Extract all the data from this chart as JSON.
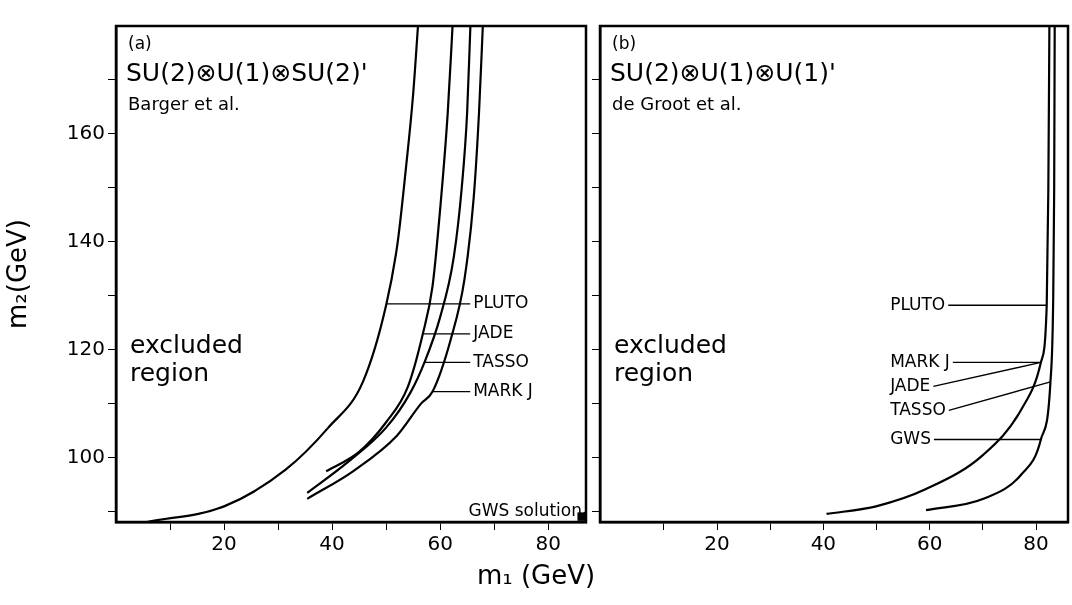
{
  "chart_data": [
    {
      "type": "line",
      "title": "(a)",
      "subtitle": "SU(2)⊗U(1)⊗SU(2)'",
      "xlabel": "m₁ (GeV)",
      "ylabel": "m₂(GeV)",
      "marker": "none",
      "line_style": "solid",
      "grid": false,
      "xlim": [
        0,
        87
      ],
      "ylim": [
        88,
        180
      ],
      "xticks": [
        {
          "value": 10,
          "label": null
        },
        20,
        {
          "value": 30,
          "label": null
        },
        40,
        {
          "value": 50,
          "label": null
        },
        60,
        {
          "value": 70,
          "label": null
        },
        80
      ],
      "yticks": [
        {
          "value": 90,
          "label": null
        },
        100,
        {
          "value": 110,
          "label": null
        },
        120,
        {
          "value": 130,
          "label": null
        },
        140,
        {
          "value": 150,
          "label": null
        },
        160,
        {
          "value": 170,
          "label": null
        }
      ],
      "series": [
        {
          "color": "#000000",
          "x": [
            5.7,
            20,
            31.4,
            39.3,
            45.7,
            50,
            52.1,
            53.6,
            55,
            55.9
          ],
          "values": [
            88,
            90.9,
            97.7,
            105.5,
            114,
            128.2,
            139.6,
            153,
            167.3,
            180
          ]
        },
        {
          "color": "#000000",
          "x": [
            38.9,
            45,
            50,
            54,
            56.8,
            58.6,
            60,
            61.4,
            62.3
          ],
          "values": [
            97.4,
            101,
            106.5,
            113,
            122.9,
            131.8,
            146,
            163.8,
            180
          ]
        },
        {
          "color": "#000000",
          "x": [
            35.4,
            42.9,
            50,
            54.5,
            57.1,
            60,
            62.5,
            64,
            65,
            65.6
          ],
          "values": [
            93.4,
            99.1,
            105.5,
            112,
            117.6,
            126,
            137,
            150,
            164,
            180
          ]
        },
        {
          "color": "#000000",
          "x": [
            35.4,
            44,
            52,
            56.5,
            58.6,
            62,
            64.5,
            66.2,
            67.2,
            67.9
          ],
          "values": [
            92.3,
            97.5,
            104,
            110,
            112.2,
            122,
            133,
            148,
            164,
            180
          ]
        },
        {
          "type": "scatter",
          "marker": "square",
          "color": "#000000",
          "x": [
            86.2
          ],
          "values": [
            89
          ]
        }
      ],
      "annotations": [
        "Barger et al.",
        "excluded region",
        "PLUTO",
        {
          "text": "JADE",
          "x": 56.8,
          "y": 122.9
        },
        {
          "text": "TASSO",
          "x": 57.1,
          "y": 117.6
        },
        {
          "text": "MARK J",
          "x": 58.6,
          "y": 112.2
        },
        {
          "text": "GWS solution",
          "x": 86.2,
          "y": 89
        }
      ]
    },
    {
      "type": "line",
      "title": "(b)",
      "subtitle": "SU(2)⊗U(1)⊗U(1)'",
      "marker": "none",
      "line_style": "solid",
      "grid": false,
      "tick_labels": "x",
      "xlim": [
        -2,
        86
      ],
      "ylim": [
        88,
        180
      ],
      "xticks": [
        {
          "value": 10,
          "label": null
        },
        20,
        {
          "value": 30,
          "label": null
        },
        40,
        {
          "value": 50,
          "label": null
        },
        60,
        {
          "value": 70,
          "label": null
        },
        80
      ],
      "yticks": [
        {
          "value": 90,
          "label": null
        },
        {
          "value": 100,
          "label": null
        },
        {
          "value": 110,
          "label": null
        },
        {
          "value": 120,
          "label": null
        },
        {
          "value": 130,
          "label": null
        },
        {
          "value": 140,
          "label": null
        },
        {
          "value": 150,
          "label": null
        },
        {
          "value": 160,
          "label": null
        },
        {
          "value": 170,
          "label": null
        }
      ],
      "series": [
        {
          "color": "#000000",
          "x": [
            40.6,
            49.9,
            59.3,
            70.1,
            77.3,
            80.9,
            82,
            82.3,
            82.5
          ],
          "values": [
            89.5,
            90.9,
            94.1,
            100.5,
            109,
            117.6,
            128.2,
            149.5,
            180
          ]
        },
        {
          "color": "#000000",
          "x": [
            59.3,
            70.1,
            77.3,
            80.9,
            82.7,
            83.2,
            83.4,
            83.5
          ],
          "values": [
            90.2,
            92.3,
            96.9,
            103.3,
            114,
            128.2,
            149.5,
            180
          ]
        }
      ],
      "annotations": [
        "de Groot et al.",
        "excluded region",
        {
          "text": "PLUTO",
          "x": 82,
          "y": 128.2
        },
        {
          "text": "MARK J",
          "x": 80.9,
          "y": 117.6
        },
        {
          "text": "JADE",
          "x": 80.9,
          "y": 117.6
        },
        {
          "text": "TASSO",
          "x": 82.7,
          "y": 114
        },
        {
          "text": "GWS",
          "x": 80.9,
          "y": 103.3
        }
      ]
    }
  ]
}
